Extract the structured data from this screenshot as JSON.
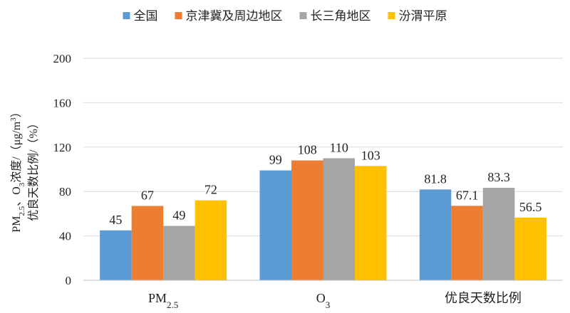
{
  "chart_data": {
    "type": "bar",
    "title": "",
    "categories": [
      {
        "base": "PM",
        "sub": "2.5",
        "rest": ""
      },
      {
        "base": "O",
        "sub": "3",
        "rest": ""
      },
      {
        "base": "优良天数比例",
        "sub": "",
        "rest": ""
      }
    ],
    "series": [
      {
        "name": "全国",
        "color": "#5B9BD5",
        "values": [
          45,
          99,
          81.8
        ],
        "labels": [
          "45",
          "99",
          "81.8"
        ]
      },
      {
        "name": "京津冀及周边地区",
        "color": "#ED7D31",
        "values": [
          67,
          108,
          67.1
        ],
        "labels": [
          "67",
          "108",
          "67.1"
        ]
      },
      {
        "name": "长三角地区",
        "color": "#A5A5A5",
        "values": [
          49,
          110,
          83.3
        ],
        "labels": [
          "49",
          "110",
          "83.3"
        ]
      },
      {
        "name": "汾渭平原",
        "color": "#FFC000",
        "values": [
          72,
          103,
          56.5
        ],
        "labels": [
          "72",
          "103",
          "56.5"
        ]
      }
    ],
    "ylim": [
      0,
      200
    ],
    "yticks": [
      0,
      40,
      80,
      120,
      160,
      200
    ],
    "ylabel_line1": [
      {
        "t": "PM",
        "s": ""
      },
      {
        "t": "2.5",
        "s": "sub"
      },
      {
        "t": "、O",
        "s": ""
      },
      {
        "t": "3",
        "s": "sub"
      },
      {
        "t": "浓度/（μg/m",
        "s": ""
      },
      {
        "t": "3",
        "s": "sup"
      },
      {
        "t": "）",
        "s": ""
      }
    ],
    "ylabel_line2": "优良天数比例/（%）",
    "grid": true,
    "legend_position": "top"
  }
}
